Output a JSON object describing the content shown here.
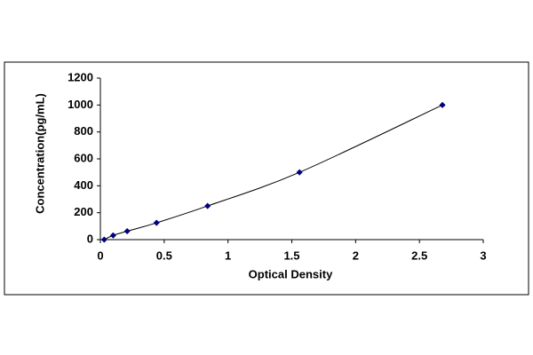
{
  "chart_data": {
    "type": "scatter",
    "x_label": "Optical Density",
    "y_label": "Concentration(pg/mL)",
    "x": [
      0.03,
      0.1,
      0.21,
      0.44,
      0.84,
      1.56,
      2.68
    ],
    "values": [
      0,
      31.2,
      62.5,
      125,
      250,
      500,
      1000
    ],
    "color": "#000080",
    "line_color": "#000000",
    "smooth_line": true,
    "xlim": [
      0,
      3
    ],
    "xticks": [
      0,
      0.5,
      1,
      1.5,
      2,
      2.5,
      3
    ],
    "ylim": [
      0,
      1200
    ],
    "yticks": [
      0,
      200,
      400,
      600,
      800,
      1000,
      1200
    ],
    "grid": false
  }
}
